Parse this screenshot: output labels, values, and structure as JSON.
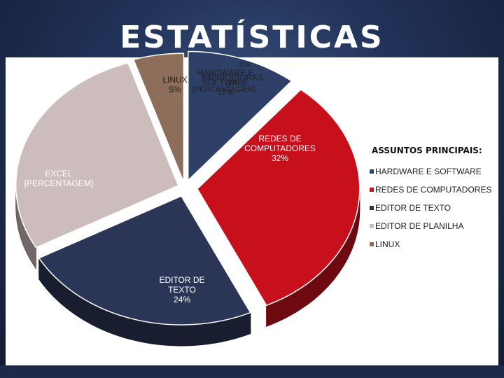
{
  "title": "ESTATÍSTICAS",
  "chart_data": {
    "type": "pie",
    "title": "ASSUNTOS PRINCIPAIS:",
    "legend_position": "right",
    "slices": [
      {
        "name": "HARDWARE E SOFTWARE",
        "label": "HARDWARE E SOFTWARE",
        "value_label": "11%",
        "value": 11,
        "color": "#2e4068"
      },
      {
        "name": "REDES DE COMPUTADORES",
        "label": "REDES DE COMPUTADORES",
        "value_label": "32%",
        "value": 32,
        "color": "#c8101c"
      },
      {
        "name": "EDITOR DE TEXTO",
        "label": "EDITOR DE TEXTO",
        "value_label": "24%",
        "value": 24,
        "color": "#2b3656"
      },
      {
        "name": "EDITOR DE PLANILHA",
        "label": "EXCEL",
        "value_label": "[PERCENTAGEM]",
        "value": 28,
        "color": "#cdbcbc"
      },
      {
        "name": "LINUX",
        "label": "LINUX",
        "value_label": "5%",
        "value": 5,
        "color": "#8c6e5a"
      }
    ],
    "extra_labels": [
      {
        "label": "IMPRESSORAS",
        "value_label": "0%"
      },
      {
        "label": "",
        "value_label": "0%"
      },
      {
        "label": "",
        "value_label": "[PERCENTAGEM]"
      }
    ]
  }
}
